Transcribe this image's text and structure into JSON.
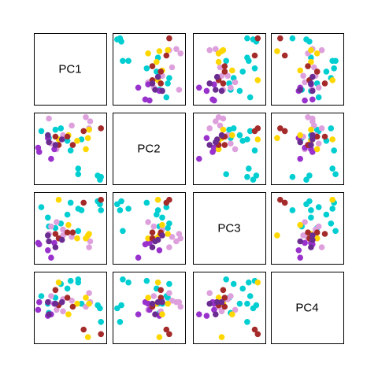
{
  "chart_data": {
    "type": "scatter",
    "subtype": "pairs-matrix",
    "variables": [
      "PC1",
      "PC2",
      "PC3",
      "PC4"
    ],
    "axes_shown": false,
    "grid": false,
    "ranges": {
      "PC1": [
        -2.6,
        3.5
      ],
      "PC2": [
        -2.7,
        2.0
      ],
      "PC3": [
        -2.1,
        2.3
      ],
      "PC4": [
        -2.3,
        2.0
      ]
    },
    "groups": [
      {
        "color": "#00CED1"
      },
      {
        "color": "#DDA0DD"
      },
      {
        "color": "#9932CC"
      },
      {
        "color": "#FFD700"
      },
      {
        "color": "#A52A2A"
      },
      {
        "color": "#6B2C91"
      }
    ],
    "points": [
      {
        "g": 0,
        "PC1": 3.2,
        "PC2": -2.6,
        "PC3": 1.7,
        "PC4": -0.2
      },
      {
        "g": 0,
        "PC1": 3.0,
        "PC2": -2.3,
        "PC3": 1.9,
        "PC4": 0.0
      },
      {
        "g": 0,
        "PC1": 3.3,
        "PC2": -2.4,
        "PC3": 1.3,
        "PC4": -1.1
      },
      {
        "g": 0,
        "PC1": 1.5,
        "PC2": 0.3,
        "PC3": 1.3,
        "PC4": 0.1
      },
      {
        "g": 0,
        "PC1": 1.2,
        "PC2": -2.2,
        "PC3": -0.1,
        "PC4": 1.7
      },
      {
        "g": 0,
        "PC1": 1.2,
        "PC2": -1.8,
        "PC3": 1.4,
        "PC4": 1.5
      },
      {
        "g": 0,
        "PC1": 0.5,
        "PC2": -0.5,
        "PC3": 1.8,
        "PC4": 1.6
      },
      {
        "g": 0,
        "PC1": 0.2,
        "PC2": 0.2,
        "PC3": 1.0,
        "PC4": 1.1
      },
      {
        "g": 0,
        "PC1": -0.4,
        "PC2": 1.1,
        "PC3": 0.4,
        "PC4": 1.4
      },
      {
        "g": 0,
        "PC1": -0.9,
        "PC2": 1.0,
        "PC3": 0.1,
        "PC4": 0.5
      },
      {
        "g": 0,
        "PC1": -1.6,
        "PC2": 0.6,
        "PC3": 0.8,
        "PC4": 0.1
      },
      {
        "g": 0,
        "PC1": -2.2,
        "PC2": 0.9,
        "PC3": 1.5,
        "PC4": 0.6
      },
      {
        "g": 0,
        "PC1": -1.5,
        "PC2": 0.4,
        "PC3": 0.2,
        "PC4": -0.5
      },
      {
        "g": 1,
        "PC1": -1.5,
        "PC2": 1.8,
        "PC3": -0.3,
        "PC4": 0.2
      },
      {
        "g": 1,
        "PC1": 1.9,
        "PC2": 1.9,
        "PC3": -0.6,
        "PC4": -0.1
      },
      {
        "g": 1,
        "PC1": 2.3,
        "PC2": 1.6,
        "PC3": -0.8,
        "PC4": 0.2
      },
      {
        "g": 1,
        "PC1": 2.2,
        "PC2": 1.1,
        "PC3": -1.2,
        "PC4": 0.8
      },
      {
        "g": 1,
        "PC1": -0.2,
        "PC2": 0.5,
        "PC3": -0.4,
        "PC4": -0.4
      },
      {
        "g": 1,
        "PC1": 0.6,
        "PC2": 1.3,
        "PC3": -0.5,
        "PC4": 0.3
      },
      {
        "g": 1,
        "PC1": -0.8,
        "PC2": -0.4,
        "PC3": 0.5,
        "PC4": -0.3
      },
      {
        "g": 1,
        "PC1": -0.2,
        "PC2": 0.6,
        "PC3": 0.0,
        "PC4": 0.4
      },
      {
        "g": 1,
        "PC1": -1.3,
        "PC2": 0.0,
        "PC3": 0.2,
        "PC4": 0.6
      },
      {
        "g": 2,
        "PC1": -2.4,
        "PC2": -0.6,
        "PC3": -1.0,
        "PC4": 0.2
      },
      {
        "g": 2,
        "PC1": -2.5,
        "PC2": -0.3,
        "PC3": -0.9,
        "PC4": -0.3
      },
      {
        "g": 2,
        "PC1": -1.3,
        "PC2": -1.1,
        "PC3": -1.9,
        "PC4": -0.6
      },
      {
        "g": 2,
        "PC1": -1.0,
        "PC2": -0.4,
        "PC3": -0.9,
        "PC4": 0.1
      },
      {
        "g": 2,
        "PC1": -1.6,
        "PC2": 0.4,
        "PC3": -1.4,
        "PC4": -0.7
      },
      {
        "g": 3,
        "PC1": 2.1,
        "PC2": 0.4,
        "PC3": -0.4,
        "PC4": -2.1
      },
      {
        "g": 3,
        "PC1": 1.9,
        "PC2": -0.4,
        "PC3": -0.6,
        "PC4": 0.5
      },
      {
        "g": 3,
        "PC1": 1.1,
        "PC2": 0.2,
        "PC3": -0.6,
        "PC4": 0.1
      },
      {
        "g": 3,
        "PC1": 0.3,
        "PC2": 0.6,
        "PC3": 0.3,
        "PC4": -0.6
      },
      {
        "g": 3,
        "PC1": -0.6,
        "PC2": 0.3,
        "PC3": 2.0,
        "PC4": 1.5
      },
      {
        "g": 3,
        "PC1": 2.2,
        "PC2": 1.0,
        "PC3": -0.3,
        "PC4": 0.1
      },
      {
        "g": 4,
        "PC1": 3.3,
        "PC2": 1.1,
        "PC3": 2.0,
        "PC4": -1.9
      },
      {
        "g": 4,
        "PC1": 1.7,
        "PC2": 0.9,
        "PC3": 1.8,
        "PC4": -1.6
      },
      {
        "g": 4,
        "PC1": 0.2,
        "PC2": 0.5,
        "PC3": -0.2,
        "PC4": 0.5
      },
      {
        "g": 4,
        "PC1": -0.9,
        "PC2": 0.5,
        "PC3": -0.3,
        "PC4": 1.0
      },
      {
        "g": 4,
        "PC1": 0.7,
        "PC2": -0.1,
        "PC3": -0.2,
        "PC4": -0.1
      },
      {
        "g": 4,
        "PC1": -0.6,
        "PC2": -0.1,
        "PC3": -0.6,
        "PC4": 0.0
      },
      {
        "g": 5,
        "PC1": -1.5,
        "PC2": 0.1,
        "PC3": -0.8,
        "PC4": -0.6
      },
      {
        "g": 5,
        "PC1": -0.9,
        "PC2": -0.1,
        "PC3": -1.2,
        "PC4": 0.1
      },
      {
        "g": 5,
        "PC1": -1.6,
        "PC2": 0.6,
        "PC3": -0.4,
        "PC4": 0.2
      },
      {
        "g": 5,
        "PC1": -0.3,
        "PC2": 0.3,
        "PC3": -0.7,
        "PC4": 0.2
      }
    ]
  }
}
